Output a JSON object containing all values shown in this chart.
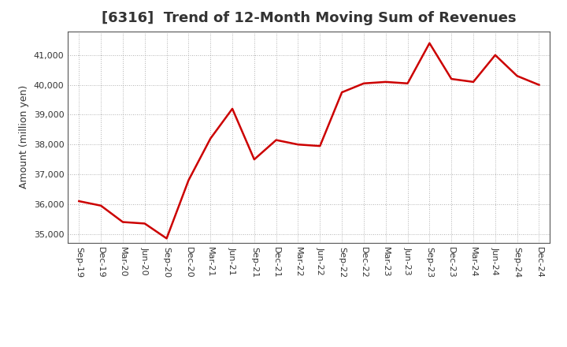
{
  "title": "[6316]  Trend of 12-Month Moving Sum of Revenues",
  "ylabel": "Amount (million yen)",
  "line_color": "#cc0000",
  "background_color": "#ffffff",
  "plot_bg_color": "#ffffff",
  "grid_color": "#999999",
  "x_labels": [
    "Sep-19",
    "Dec-19",
    "Mar-20",
    "Jun-20",
    "Sep-20",
    "Dec-20",
    "Mar-21",
    "Jun-21",
    "Sep-21",
    "Dec-21",
    "Mar-22",
    "Jun-22",
    "Sep-22",
    "Dec-22",
    "Mar-23",
    "Jun-23",
    "Sep-23",
    "Dec-23",
    "Mar-24",
    "Jun-24",
    "Sep-24",
    "Dec-24"
  ],
  "values": [
    36100,
    35950,
    35400,
    35350,
    34850,
    36800,
    38200,
    39200,
    37500,
    38150,
    38000,
    37950,
    39750,
    40050,
    40100,
    40050,
    41400,
    40200,
    40100,
    41000,
    40300,
    40000
  ],
  "ylim": [
    34700,
    41800
  ],
  "yticks": [
    35000,
    36000,
    37000,
    38000,
    39000,
    40000,
    41000
  ],
  "title_fontsize": 13,
  "axis_fontsize": 9,
  "tick_fontsize": 8,
  "line_width": 1.8,
  "title_color": "#333333"
}
